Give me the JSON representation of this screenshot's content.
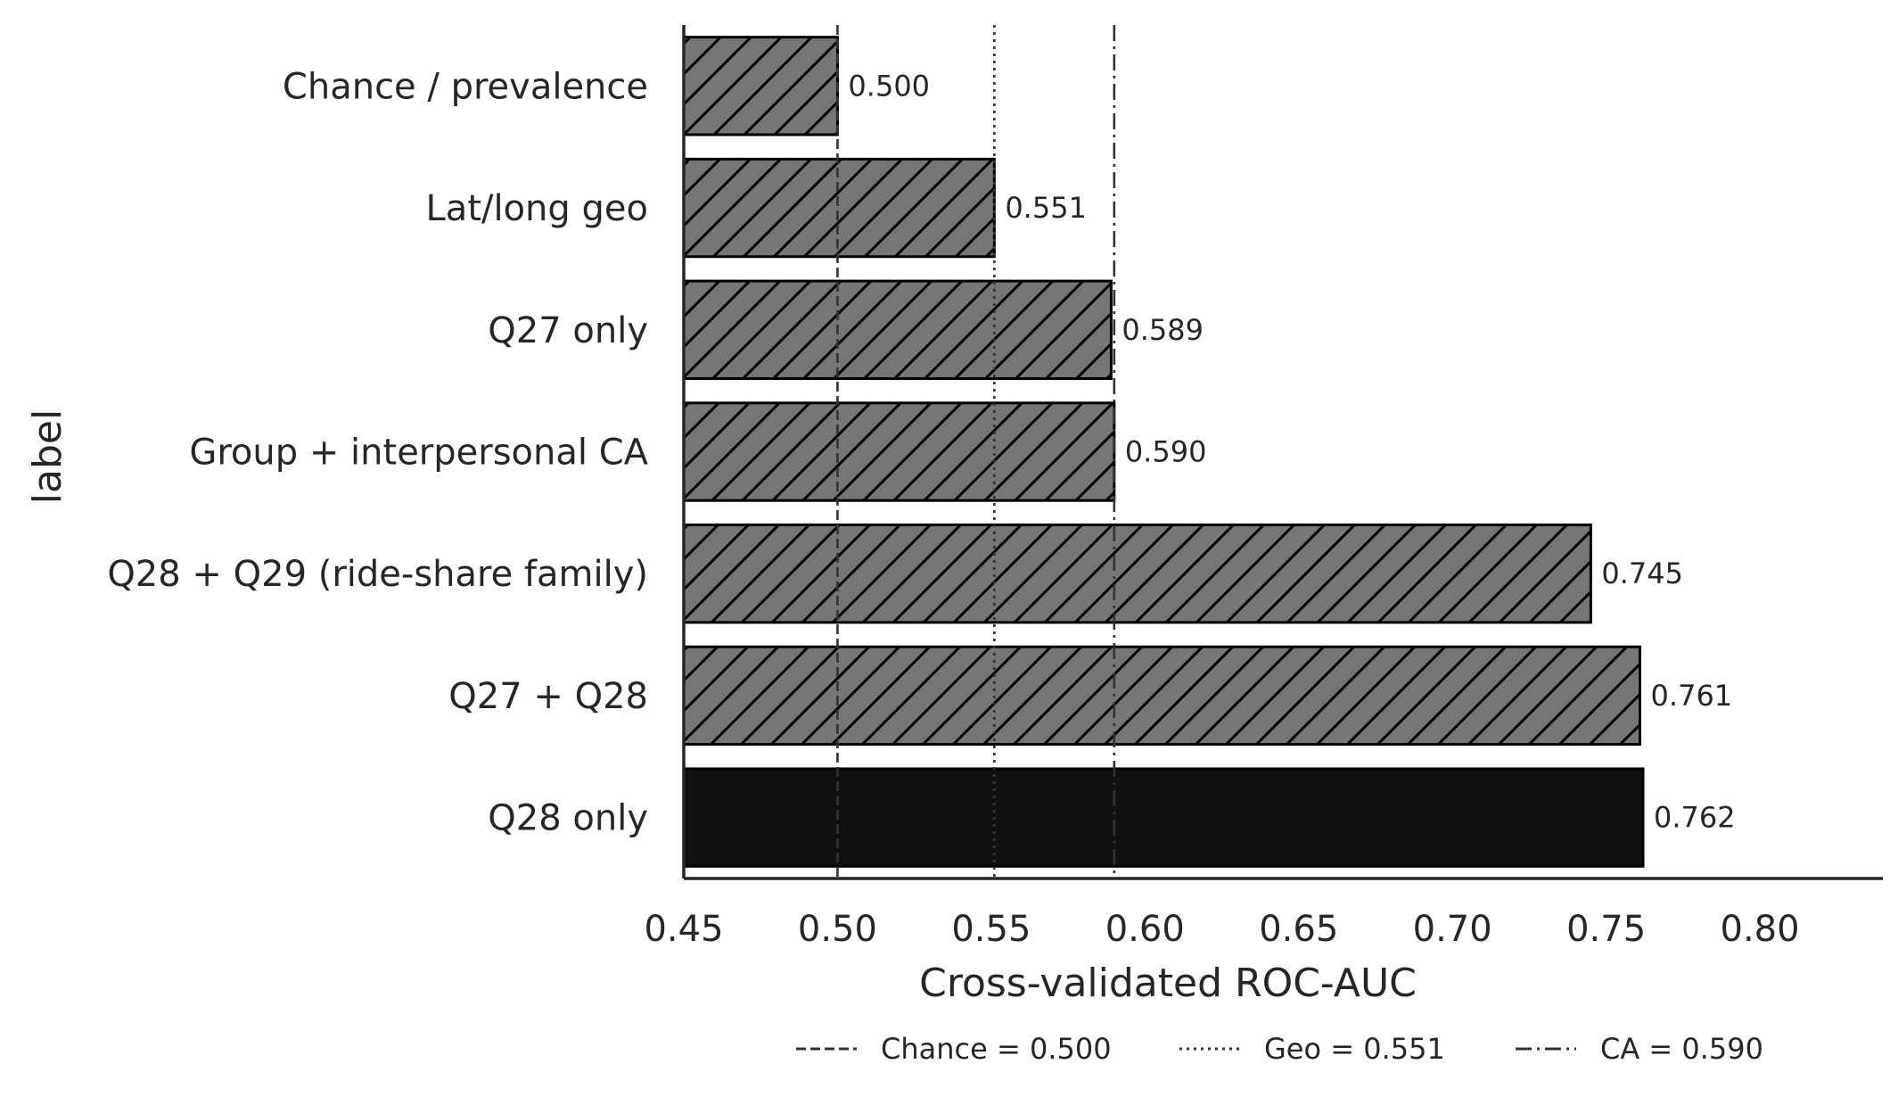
{
  "chart_data": {
    "type": "bar",
    "orientation": "horizontal",
    "categories": [
      "Chance / prevalence",
      "Lat/long geo",
      "Q27 only",
      "Group + interpersonal CA",
      "Q28 + Q29 (ride-share family)",
      "Q27 + Q28",
      "Q28 only"
    ],
    "values": [
      0.5,
      0.551,
      0.589,
      0.59,
      0.745,
      0.761,
      0.762
    ],
    "value_labels": [
      "0.500",
      "0.551",
      "0.589",
      "0.590",
      "0.745",
      "0.761",
      "0.762"
    ],
    "highlight_index": 6,
    "bar_colors": {
      "default": "#767676",
      "highlight": "#111111",
      "hatch": "#000000"
    },
    "xlabel": "Cross-validated ROC-AUC",
    "ylabel": "label",
    "xlim": [
      0.45,
      0.84
    ],
    "xticks": [
      0.45,
      0.5,
      0.55,
      0.6,
      0.65,
      0.7,
      0.75,
      0.8
    ],
    "xtick_labels": [
      "0.45",
      "0.50",
      "0.55",
      "0.60",
      "0.65",
      "0.70",
      "0.75",
      "0.80"
    ],
    "grid": false,
    "reference_lines": [
      {
        "value": 0.5,
        "style": "dashed",
        "label": "Chance = 0.500"
      },
      {
        "value": 0.551,
        "style": "dotted",
        "label": "Geo = 0.551"
      },
      {
        "value": 0.59,
        "style": "dashdot",
        "label": "CA = 0.590"
      }
    ],
    "legend_position": "bottom-center"
  }
}
